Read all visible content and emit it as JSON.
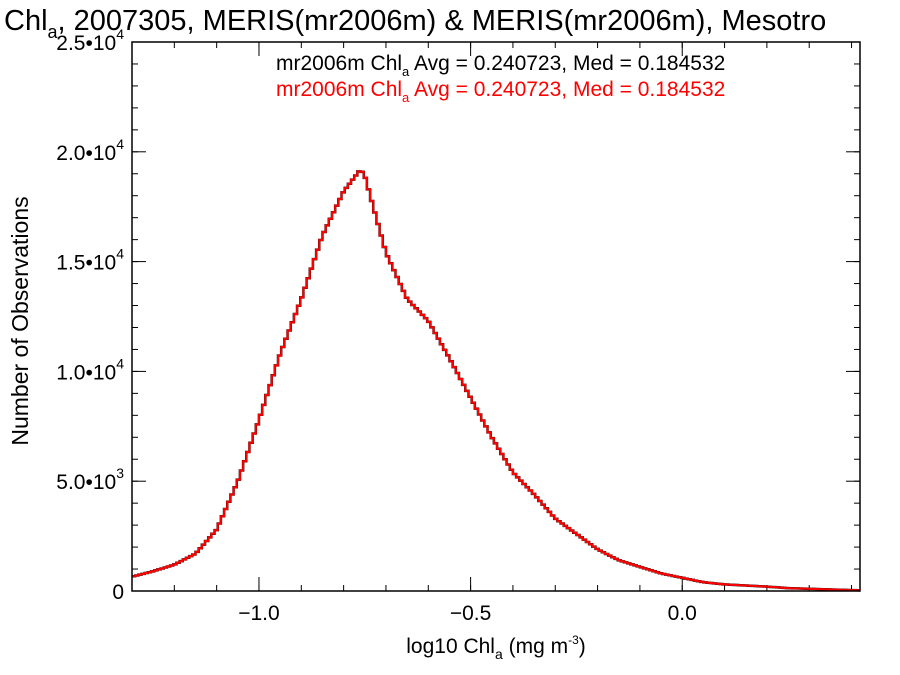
{
  "chart_data": {
    "type": "line",
    "title": {
      "pre": "Chl",
      "sub": "a",
      "post": ", 2007305, MERIS(mr2006m) & MERIS(mr2006m), Mesotro"
    },
    "xlabel": {
      "pre": "log10 Chl",
      "sub": "a",
      "mid": " (mg m",
      "sup": "-3",
      "post": ")"
    },
    "ylabel": "Number of Observations",
    "xlim": [
      -1.3,
      0.42
    ],
    "ylim": [
      0,
      25000
    ],
    "x_ticks": [
      {
        "value": -1.0,
        "label": "−1.0"
      },
      {
        "value": -0.5,
        "label": "−0.5"
      },
      {
        "value": 0.0,
        "label": "0.0"
      }
    ],
    "x_minor_step": 0.1,
    "y_ticks": [
      {
        "value": 0,
        "mant": "0",
        "exp": ""
      },
      {
        "value": 5000,
        "mant": "5.0•10",
        "exp": "3"
      },
      {
        "value": 10000,
        "mant": "1.0•10",
        "exp": "4"
      },
      {
        "value": 15000,
        "mant": "1.5•10",
        "exp": "4"
      },
      {
        "value": 20000,
        "mant": "2.0•10",
        "exp": "4"
      },
      {
        "value": 25000,
        "mant": "2.5•10",
        "exp": "4"
      }
    ],
    "y_minor_step": 1000,
    "grid": false,
    "annotations": [
      {
        "pre": "mr2006m Chl",
        "sub": "a",
        "post": " Avg = 0.240723, Med = 0.184532",
        "color": "#000000"
      },
      {
        "pre": "mr2006m Chl",
        "sub": "a",
        "post": " Avg = 0.240723, Med = 0.184532",
        "color": "#ff0000"
      }
    ],
    "series": [
      {
        "color": "#000000",
        "x": [
          -1.3,
          -1.25,
          -1.2,
          -1.15,
          -1.1,
          -1.05,
          -1.0,
          -0.95,
          -0.9,
          -0.85,
          -0.8,
          -0.76,
          -0.75,
          -0.7,
          -0.65,
          -0.6,
          -0.55,
          -0.5,
          -0.45,
          -0.4,
          -0.35,
          -0.3,
          -0.25,
          -0.2,
          -0.15,
          -0.1,
          -0.05,
          0.0,
          0.05,
          0.1,
          0.15,
          0.2,
          0.25,
          0.3,
          0.35,
          0.42
        ],
        "y": [
          650,
          900,
          1200,
          1700,
          2800,
          5000,
          7800,
          10800,
          13300,
          16200,
          18200,
          19200,
          18900,
          15400,
          13300,
          12300,
          10600,
          8800,
          7000,
          5400,
          4400,
          3300,
          2600,
          1900,
          1400,
          1100,
          800,
          600,
          400,
          300,
          250,
          200,
          130,
          100,
          70,
          30
        ]
      },
      {
        "color": "#ff0000",
        "x": [
          -1.3,
          -1.25,
          -1.2,
          -1.15,
          -1.1,
          -1.05,
          -1.0,
          -0.95,
          -0.9,
          -0.85,
          -0.8,
          -0.76,
          -0.75,
          -0.7,
          -0.65,
          -0.6,
          -0.55,
          -0.5,
          -0.45,
          -0.4,
          -0.35,
          -0.3,
          -0.25,
          -0.2,
          -0.15,
          -0.1,
          -0.05,
          0.0,
          0.05,
          0.1,
          0.15,
          0.2,
          0.25,
          0.3,
          0.35,
          0.42
        ],
        "y": [
          650,
          900,
          1200,
          1700,
          2800,
          5000,
          7800,
          10800,
          13300,
          16200,
          18200,
          19200,
          18900,
          15400,
          13300,
          12300,
          10600,
          8800,
          7000,
          5400,
          4400,
          3300,
          2600,
          1900,
          1400,
          1100,
          800,
          600,
          400,
          300,
          250,
          200,
          130,
          100,
          70,
          30
        ]
      }
    ]
  }
}
